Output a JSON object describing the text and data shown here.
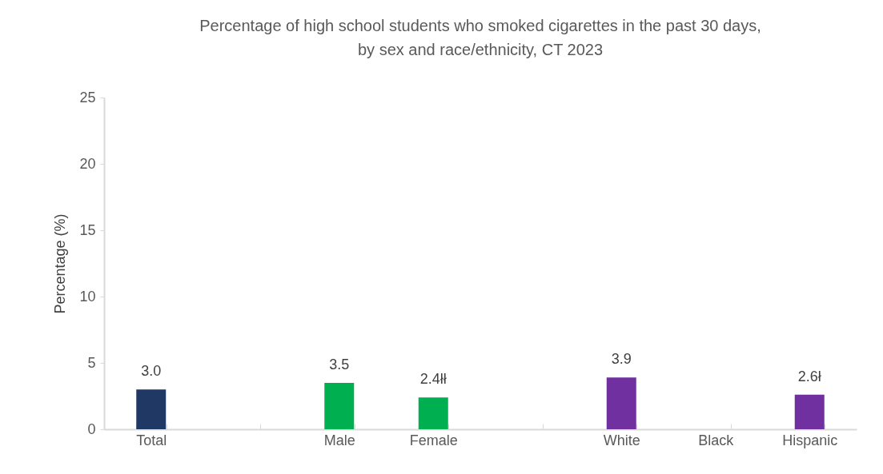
{
  "chart_data": {
    "type": "bar",
    "title": "Percentage of high school students who smoked cigarettes in the past 30 days,\nby sex and race/ethnicity, CT 2023",
    "ylabel": "Percentage (%)",
    "categories": [
      "Total",
      null,
      "Male",
      "Female",
      null,
      "White",
      "Black",
      "Hispanic"
    ],
    "values": [
      3.0,
      null,
      3.5,
      2.4,
      null,
      3.9,
      null,
      2.6
    ],
    "colors": [
      "#1f3864",
      "#1f3864",
      "#00b050",
      "#00b050",
      "#7030a0",
      "#7030a0",
      "#7030a0",
      "#7030a0"
    ],
    "value_labels": [
      "3.0",
      null,
      "3.5",
      "2.4łł",
      null,
      "3.9",
      null,
      "2.6ł"
    ],
    "ylim": [
      0,
      25
    ],
    "yticks": [
      0,
      5,
      10,
      15,
      20,
      25
    ],
    "grid": false,
    "legend": false
  }
}
